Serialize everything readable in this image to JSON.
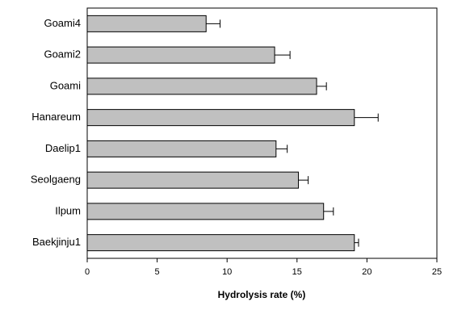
{
  "chart_data": {
    "type": "bar",
    "orientation": "horizontal",
    "xlabel": "Hydrolysis rate (%)",
    "categories": [
      "Goami4",
      "Goami2",
      "Goami",
      "Hanareum",
      "Daelip1",
      "Seolgaeng",
      "Ilpum",
      "Baekjinju1"
    ],
    "values": [
      8.5,
      13.4,
      16.4,
      19.1,
      13.5,
      15.1,
      16.9,
      19.1
    ],
    "errors": [
      1.0,
      1.1,
      0.7,
      1.7,
      0.8,
      0.7,
      0.7,
      0.3
    ],
    "color": "#c0c0c0",
    "xlim": [
      0,
      25
    ],
    "xticks": [
      0,
      5,
      10,
      15,
      20,
      25
    ],
    "grid": false
  }
}
